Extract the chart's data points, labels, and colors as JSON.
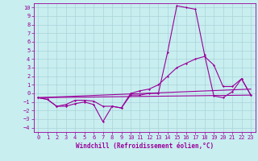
{
  "background_color": "#c8eef0",
  "grid_color": "#aad4d8",
  "line_color": "#990099",
  "marker": "D",
  "marker_size": 1.5,
  "line_width": 0.8,
  "xlim": [
    -0.5,
    23.5
  ],
  "ylim": [
    -4.5,
    10.5
  ],
  "yticks": [
    -4,
    -3,
    -2,
    -1,
    0,
    1,
    2,
    3,
    4,
    5,
    6,
    7,
    8,
    9,
    10
  ],
  "xticks": [
    0,
    1,
    2,
    3,
    4,
    5,
    6,
    7,
    8,
    9,
    10,
    11,
    12,
    13,
    14,
    15,
    16,
    17,
    18,
    19,
    20,
    21,
    22,
    23
  ],
  "xlabel": "Windchill (Refroidissement éolien,°C)",
  "line1_x": [
    0,
    1,
    2,
    3,
    4,
    5,
    6,
    7,
    8,
    9,
    10,
    11,
    12,
    13,
    14,
    15,
    16,
    17,
    18,
    19,
    20,
    21,
    22,
    23
  ],
  "line1_y": [
    -0.5,
    -0.7,
    -1.5,
    -1.5,
    -1.2,
    -1.0,
    -1.3,
    -3.3,
    -1.5,
    -1.7,
    -0.2,
    -0.2,
    0.0,
    0.0,
    4.8,
    10.2,
    10.0,
    9.8,
    4.5,
    -0.3,
    -0.5,
    0.2,
    1.7,
    -0.2
  ],
  "line2_x": [
    0,
    1,
    2,
    3,
    4,
    5,
    6,
    7,
    8,
    9,
    10,
    11,
    12,
    13,
    14,
    15,
    16,
    17,
    18,
    19,
    20,
    21,
    22,
    23
  ],
  "line2_y": [
    -0.5,
    -0.7,
    -1.5,
    -1.3,
    -0.8,
    -0.8,
    -0.9,
    -1.5,
    -1.5,
    -1.7,
    0.0,
    0.3,
    0.5,
    1.0,
    2.0,
    3.0,
    3.5,
    4.0,
    4.3,
    3.3,
    0.8,
    0.8,
    1.7,
    -0.2
  ],
  "line3_x": [
    0,
    23
  ],
  "line3_y": [
    -0.5,
    0.5
  ],
  "line4_x": [
    0,
    23
  ],
  "line4_y": [
    -0.5,
    -0.2
  ],
  "tick_fontsize": 5.0,
  "xlabel_fontsize": 5.5
}
